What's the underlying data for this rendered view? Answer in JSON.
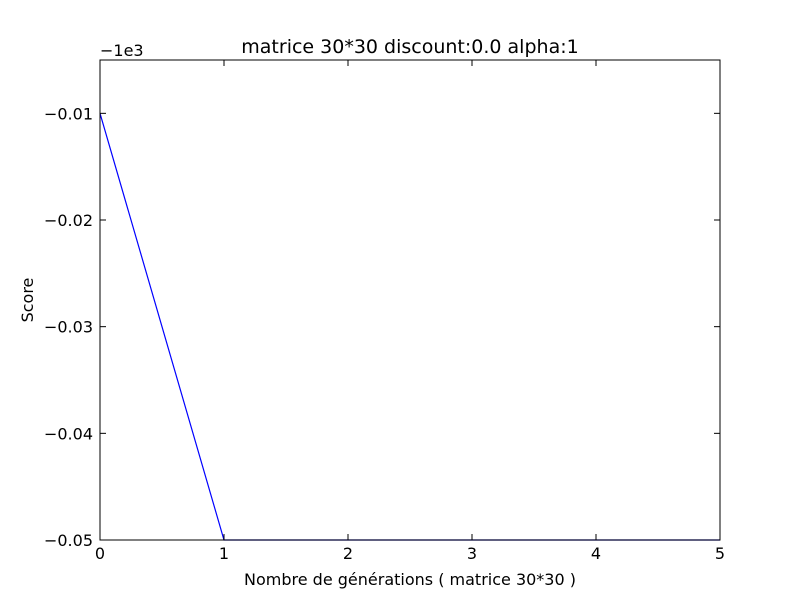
{
  "chart_data": {
    "type": "line",
    "title": "matrice 30*30 discount:0.0 alpha:1",
    "xlabel": "Nombre de générations ( matrice 30*30 )",
    "ylabel": "Score",
    "y_offset_label": "−1e3",
    "xlim": [
      0,
      5
    ],
    "ylim": [
      -0.05,
      -0.005
    ],
    "x_ticks": [
      0,
      1,
      2,
      3,
      4,
      5
    ],
    "x_tick_labels": [
      "0",
      "1",
      "2",
      "3",
      "4",
      "5"
    ],
    "y_ticks": [
      -0.01,
      -0.02,
      -0.03,
      -0.04,
      -0.05
    ],
    "y_tick_labels": [
      "−0.01",
      "−0.02",
      "−0.03",
      "−0.04",
      "−0.05"
    ],
    "grid": false,
    "series": [
      {
        "color": "#0000ff",
        "x": [
          0,
          1,
          2,
          3,
          4,
          5
        ],
        "y": [
          -0.01,
          -0.05,
          -0.05,
          -0.05,
          -0.05,
          -0.05
        ]
      }
    ]
  }
}
